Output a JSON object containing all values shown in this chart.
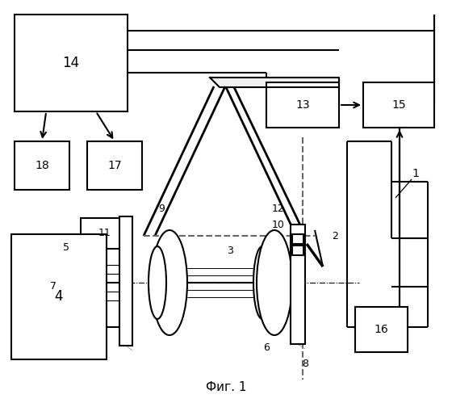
{
  "title": "Фиг. 1",
  "bg": "#ffffff",
  "lw": 1.5
}
